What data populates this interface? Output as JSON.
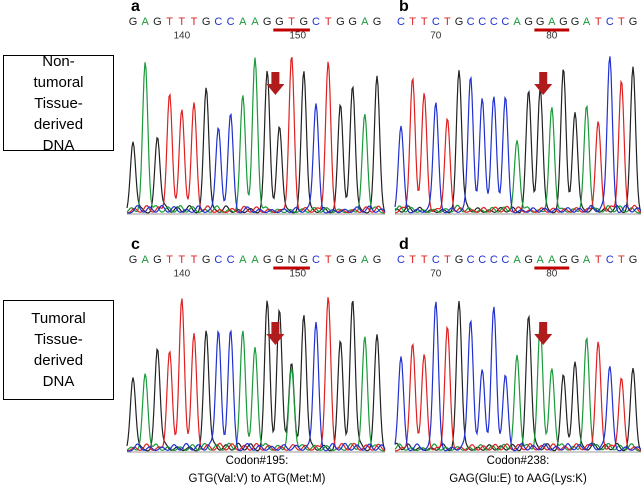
{
  "rows": [
    {
      "label": "Non-tumoral Tissue-derived DNA"
    },
    {
      "label": "Tumoral Tissue-derived DNA"
    }
  ],
  "panels": [
    {
      "letter": "a",
      "sequence": [
        "G",
        "A",
        "G",
        "T",
        "T",
        "T",
        "G",
        "C",
        "C",
        "A",
        "A",
        "G",
        "G",
        "T",
        "G",
        "C",
        "T",
        "G",
        "G",
        "A",
        "G"
      ],
      "positions": [
        "140",
        "150"
      ]
    },
    {
      "letter": "b",
      "sequence": [
        "C",
        "T",
        "T",
        "C",
        "T",
        "G",
        "C",
        "C",
        "C",
        "C",
        "A",
        "G",
        "G",
        "A",
        "G",
        "G",
        "A",
        "T",
        "C",
        "T",
        "G"
      ],
      "positions": [
        "70",
        "80"
      ]
    },
    {
      "letter": "c",
      "sequence": [
        "G",
        "A",
        "G",
        "T",
        "T",
        "T",
        "G",
        "C",
        "C",
        "A",
        "A",
        "G",
        "G",
        "N",
        "G",
        "C",
        "T",
        "G",
        "G",
        "A",
        "G"
      ],
      "positions": [
        "140",
        "150"
      ]
    },
    {
      "letter": "d",
      "sequence": [
        "C",
        "T",
        "T",
        "C",
        "T",
        "G",
        "C",
        "C",
        "C",
        "C",
        "A",
        "G",
        "A",
        "A",
        "G",
        "G",
        "A",
        "T",
        "C",
        "T",
        "G"
      ],
      "positions": [
        "70",
        "80"
      ]
    }
  ],
  "captions": [
    {
      "codon": "Codon#195:",
      "change": "GTG(Val:V) to ATG(Met:M)"
    },
    {
      "codon": "Codon#238:",
      "change": "GAG(Glu:E) to AAG(Lys:K)"
    }
  ]
}
